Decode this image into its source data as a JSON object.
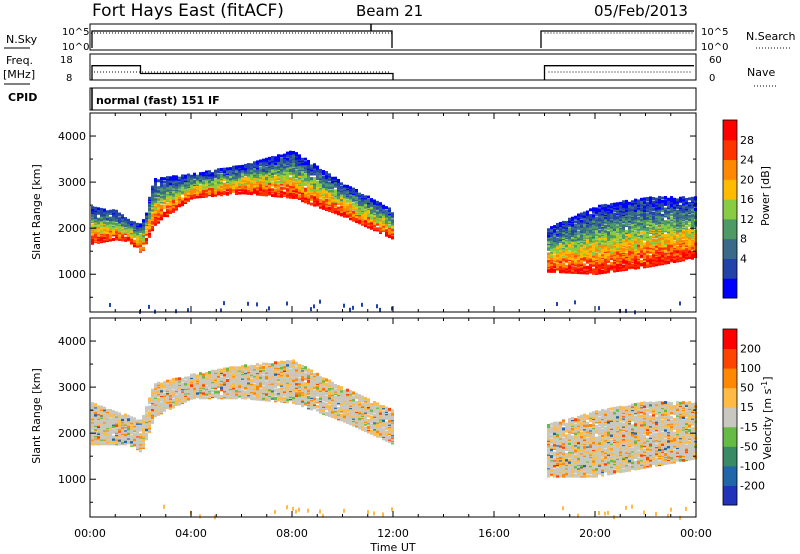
{
  "header": {
    "title": "Fort Hays East (fitACF)",
    "beam": "Beam 21",
    "date": "05/Feb/2013"
  },
  "noise_panel": {
    "left_label": "N.Sky",
    "right_label": "N.Search",
    "left_ticks": [
      "10^5",
      "10^0"
    ],
    "right_ticks": [
      "10^5",
      "10^0"
    ]
  },
  "freq_panel": {
    "left_label_1": "Freq.",
    "left_label_2": "[MHz]",
    "right_label": "Nave",
    "left_ticks": [
      "18",
      "8"
    ],
    "right_ticks": [
      "60",
      "0"
    ],
    "freq_mhz": [
      {
        "x": 0.0,
        "y": 13.5
      },
      {
        "x": 2.0,
        "y": 13.5
      },
      {
        "x": 2.0,
        "y": 10.5
      },
      {
        "x": 12.0,
        "y": 10.5
      },
      {
        "x": 18.0,
        "y": 13.5
      },
      {
        "x": 24.0,
        "y": 13.5
      }
    ]
  },
  "cpid": {
    "label": "CPID",
    "text": "normal (fast) 151 IF"
  },
  "power_panel": {
    "ylabel": "Slant Range [km]",
    "yticks": [
      "4000",
      "3000",
      "2000",
      "1000"
    ],
    "colorbar": {
      "label": "Power [dB]",
      "ticks": [
        "28",
        "24",
        "20",
        "16",
        "12",
        "8",
        "4"
      ],
      "colors": [
        "#0000ff",
        "#2244aa",
        "#3a6a8a",
        "#4e9a66",
        "#88cc44",
        "#ffbb00",
        "#ff8800",
        "#ff3300",
        "#ff0000"
      ]
    }
  },
  "velocity_panel": {
    "ylabel": "Slant Range [km]",
    "yticks": [
      "4000",
      "3000",
      "2000",
      "1000"
    ],
    "colorbar": {
      "label": "Velocity [m s",
      "label_sup": "-1",
      "label_end": "]",
      "ticks": [
        "200",
        "100",
        "50",
        "15",
        "-15",
        "-50",
        "-100",
        "-200"
      ],
      "colors": [
        "#2233bb",
        "#2266aa",
        "#3a8a66",
        "#66bb44",
        "#c8c8c0",
        "#ffbb44",
        "#ff8800",
        "#ff4400",
        "#ff0000"
      ]
    }
  },
  "xaxis": {
    "ticks": [
      "00:00",
      "04:00",
      "08:00",
      "12:00",
      "16:00",
      "20:00",
      "00:00"
    ],
    "label": "Time UT"
  },
  "chart_data": {
    "type": "heatmap",
    "x_range_hours": [
      0,
      24
    ],
    "y_range_km": [
      180,
      4500
    ],
    "data_gap_hours": [
      12.0,
      18.0
    ],
    "power_band": [
      {
        "t": 0.0,
        "lo": 1700,
        "hi": 2500
      },
      {
        "t": 1.0,
        "lo": 1800,
        "hi": 2400
      },
      {
        "t": 1.5,
        "lo": 1750,
        "hi": 2200
      },
      {
        "t": 2.0,
        "lo": 1500,
        "hi": 2100
      },
      {
        "t": 2.5,
        "lo": 2100,
        "hi": 3100
      },
      {
        "t": 4.0,
        "lo": 2700,
        "hi": 3200
      },
      {
        "t": 6.0,
        "lo": 2800,
        "hi": 3400
      },
      {
        "t": 8.0,
        "lo": 2700,
        "hi": 3700
      },
      {
        "t": 10.0,
        "lo": 2300,
        "hi": 3000
      },
      {
        "t": 12.0,
        "lo": 1800,
        "hi": 2400
      },
      {
        "t": 18.0,
        "lo": 1100,
        "hi": 2000
      },
      {
        "t": 20.0,
        "lo": 1050,
        "hi": 2500
      },
      {
        "t": 22.0,
        "lo": 1200,
        "hi": 2700
      },
      {
        "t": 24.0,
        "lo": 1400,
        "hi": 2700
      }
    ],
    "velocity_band": [
      {
        "t": 0.0,
        "lo": 1800,
        "hi": 2700
      },
      {
        "t": 1.5,
        "lo": 1800,
        "hi": 2400
      },
      {
        "t": 2.0,
        "lo": 1600,
        "hi": 2300
      },
      {
        "t": 2.5,
        "lo": 2400,
        "hi": 3100
      },
      {
        "t": 4.0,
        "lo": 2800,
        "hi": 3300
      },
      {
        "t": 6.0,
        "lo": 2800,
        "hi": 3500
      },
      {
        "t": 8.0,
        "lo": 2700,
        "hi": 3600
      },
      {
        "t": 10.0,
        "lo": 2300,
        "hi": 3000
      },
      {
        "t": 12.0,
        "lo": 1800,
        "hi": 2500
      },
      {
        "t": 18.0,
        "lo": 1100,
        "hi": 2200
      },
      {
        "t": 20.0,
        "lo": 1100,
        "hi": 2500
      },
      {
        "t": 22.0,
        "lo": 1300,
        "hi": 2700
      },
      {
        "t": 24.0,
        "lo": 1500,
        "hi": 2700
      }
    ]
  }
}
